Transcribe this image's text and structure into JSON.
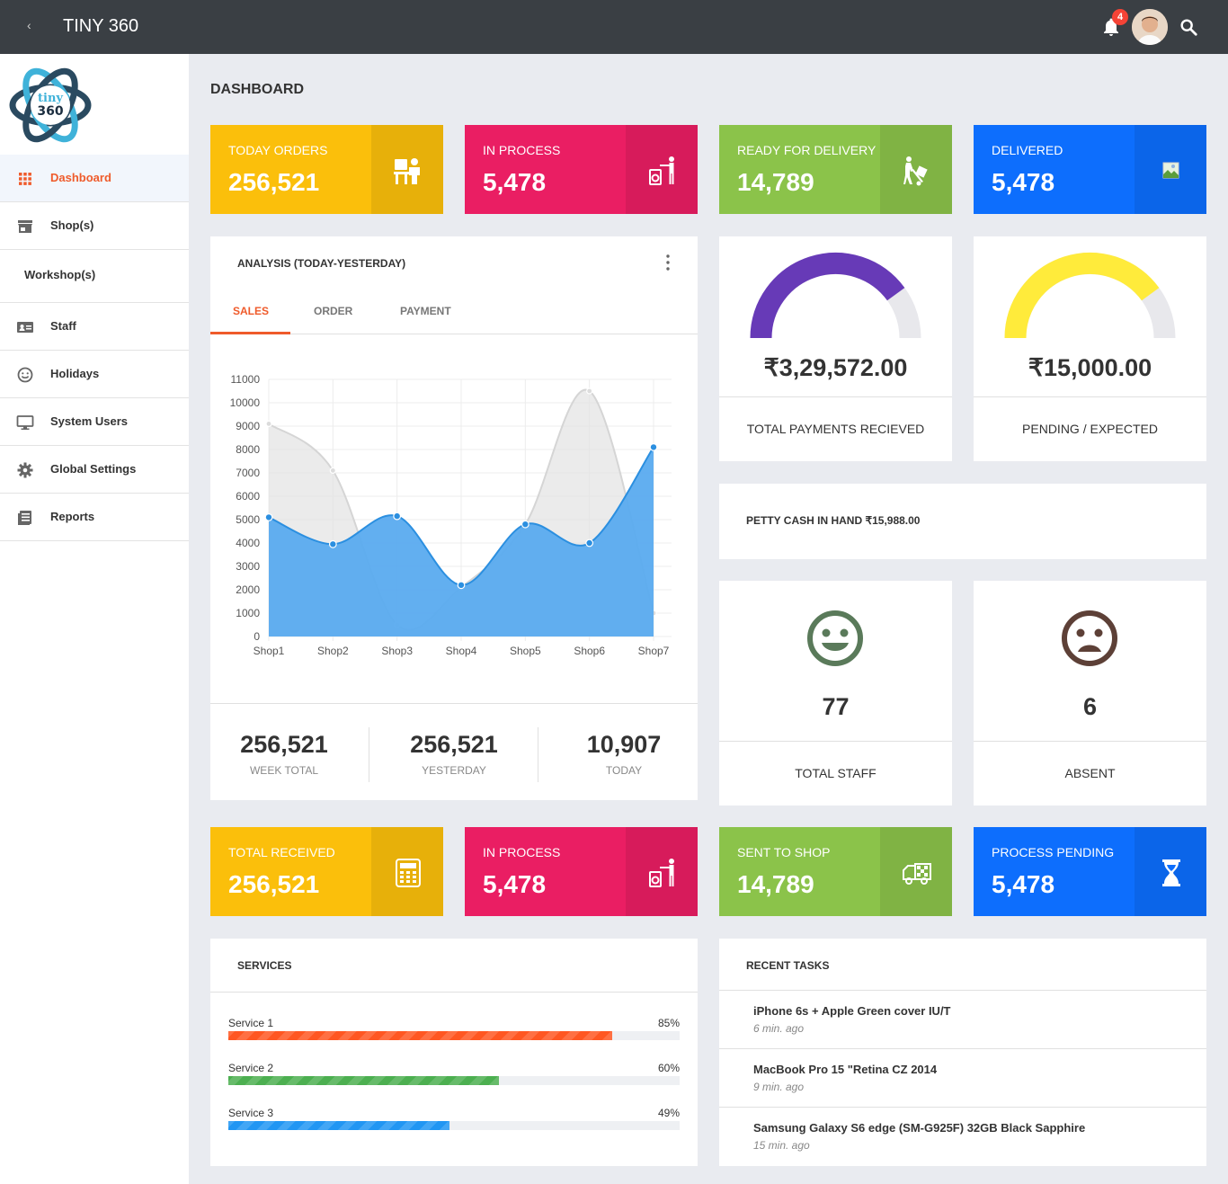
{
  "app": {
    "title": "TINY 360",
    "notification_count": "4",
    "logo_line1": "tiny",
    "logo_line2": "360"
  },
  "sidebar": {
    "items": [
      {
        "label": "Dashboard",
        "icon": "grid-icon"
      },
      {
        "label": "Shop(s)",
        "icon": "store-icon"
      },
      {
        "label": "Workshop(s)",
        "icon": ""
      },
      {
        "label": "Staff",
        "icon": "id-card-icon"
      },
      {
        "label": "Holidays",
        "icon": "smiley-icon"
      },
      {
        "label": "System Users",
        "icon": "monitor-icon"
      },
      {
        "label": "Global Settings",
        "icon": "gear-icon"
      },
      {
        "label": "Reports",
        "icon": "document-icon"
      }
    ]
  },
  "page_title": "DASHBOARD",
  "top_stats": [
    {
      "label": "TODAY ORDERS",
      "value": "256,521",
      "color": "#fbbf0b",
      "icon": "person-at-desk-icon"
    },
    {
      "label": "IN PROCESS",
      "value": "5,478",
      "color": "#ea1e63",
      "icon": "laundry-worker-icon"
    },
    {
      "label": "READY FOR DELIVERY",
      "value": "14,789",
      "color": "#8bc34a",
      "icon": "delivery-trolley-icon"
    },
    {
      "label": "DELIVERED",
      "value": "5,478",
      "color": "#0d6efd",
      "icon": "broken-image-icon"
    }
  ],
  "analysis": {
    "title": "ANALYSIS (TODAY-YESTERDAY)",
    "tabs": [
      "SALES",
      "ORDER",
      "PAYMENT"
    ],
    "active_tab": "SALES",
    "summary": [
      {
        "value": "256,521",
        "label": "WEEK TOTAL"
      },
      {
        "value": "256,521",
        "label": "YESTERDAY"
      },
      {
        "value": "10,907",
        "label": "TODAY"
      }
    ]
  },
  "chart_data": {
    "type": "area",
    "categories": [
      "Shop1",
      "Shop2",
      "Shop3",
      "Shop4",
      "Shop5",
      "Shop6",
      "Shop7"
    ],
    "series": [
      {
        "values": [
          9100,
          7100,
          500,
          2100,
          4800,
          10500,
          1000
        ],
        "color": "#e3e3e3"
      },
      {
        "values": [
          5100,
          3950,
          5150,
          2200,
          4800,
          4000,
          8100
        ],
        "color": "#5aabef"
      }
    ],
    "ylim": [
      0,
      11000
    ],
    "yticks": [
      "0",
      "1000",
      "2000",
      "3000",
      "4000",
      "5000",
      "6000",
      "7000",
      "8000",
      "9000",
      "10000",
      "11000"
    ],
    "grid": true
  },
  "payments": {
    "received": {
      "value": "₹3,29,572.00",
      "label": "TOTAL PAYMENTS RECIEVED",
      "fraction": 0.8,
      "color": "#673ab7"
    },
    "pending": {
      "value": "₹15,000.00",
      "label": "PENDING / EXPECTED",
      "fraction": 0.8,
      "color": "#ffeb3b"
    }
  },
  "petty_cash": {
    "label": "PETTY CASH IN HAND ₹15,988.00"
  },
  "staff": {
    "total": {
      "value": "77",
      "label": "TOTAL STAFF",
      "icon": "happy-face-icon",
      "color": "#5a7a5a"
    },
    "absent": {
      "value": "6",
      "label": "ABSENT",
      "icon": "sad-face-icon",
      "color": "#5d4037"
    }
  },
  "bottom_stats": [
    {
      "label": "TOTAL RECEIVED",
      "value": "256,521",
      "color": "#fbbf0b",
      "icon": "calculator-icon"
    },
    {
      "label": "IN PROCESS",
      "value": "5,478",
      "color": "#ea1e63",
      "icon": "laundry-worker-icon"
    },
    {
      "label": "SENT TO SHOP",
      "value": "14,789",
      "color": "#8bc34a",
      "icon": "delivery-truck-icon"
    },
    {
      "label": "PROCESS PENDING",
      "value": "5,478",
      "color": "#0d6efd",
      "icon": "hourglass-icon"
    }
  ],
  "services": {
    "title": "SERVICES",
    "items": [
      {
        "name": "Service 1",
        "percent_label": "85%",
        "percent": 85,
        "color": "#ff5722"
      },
      {
        "name": "Service 2",
        "percent_label": "60%",
        "percent": 60,
        "color": "#4caf50"
      },
      {
        "name": "Service 3",
        "percent_label": "49%",
        "percent": 49,
        "color": "#2196f3"
      }
    ]
  },
  "recent_tasks": {
    "title": "RECENT TASKS",
    "items": [
      {
        "title": "iPhone 6s + Apple Green cover IU/T",
        "time": "6 min. ago"
      },
      {
        "title": "MacBook Pro 15 \"Retina CZ 2014",
        "time": "9 min. ago"
      },
      {
        "title": "Samsung Galaxy S6 edge (SM-G925F) 32GB Black Sapphire",
        "time": "15 min. ago"
      }
    ]
  }
}
